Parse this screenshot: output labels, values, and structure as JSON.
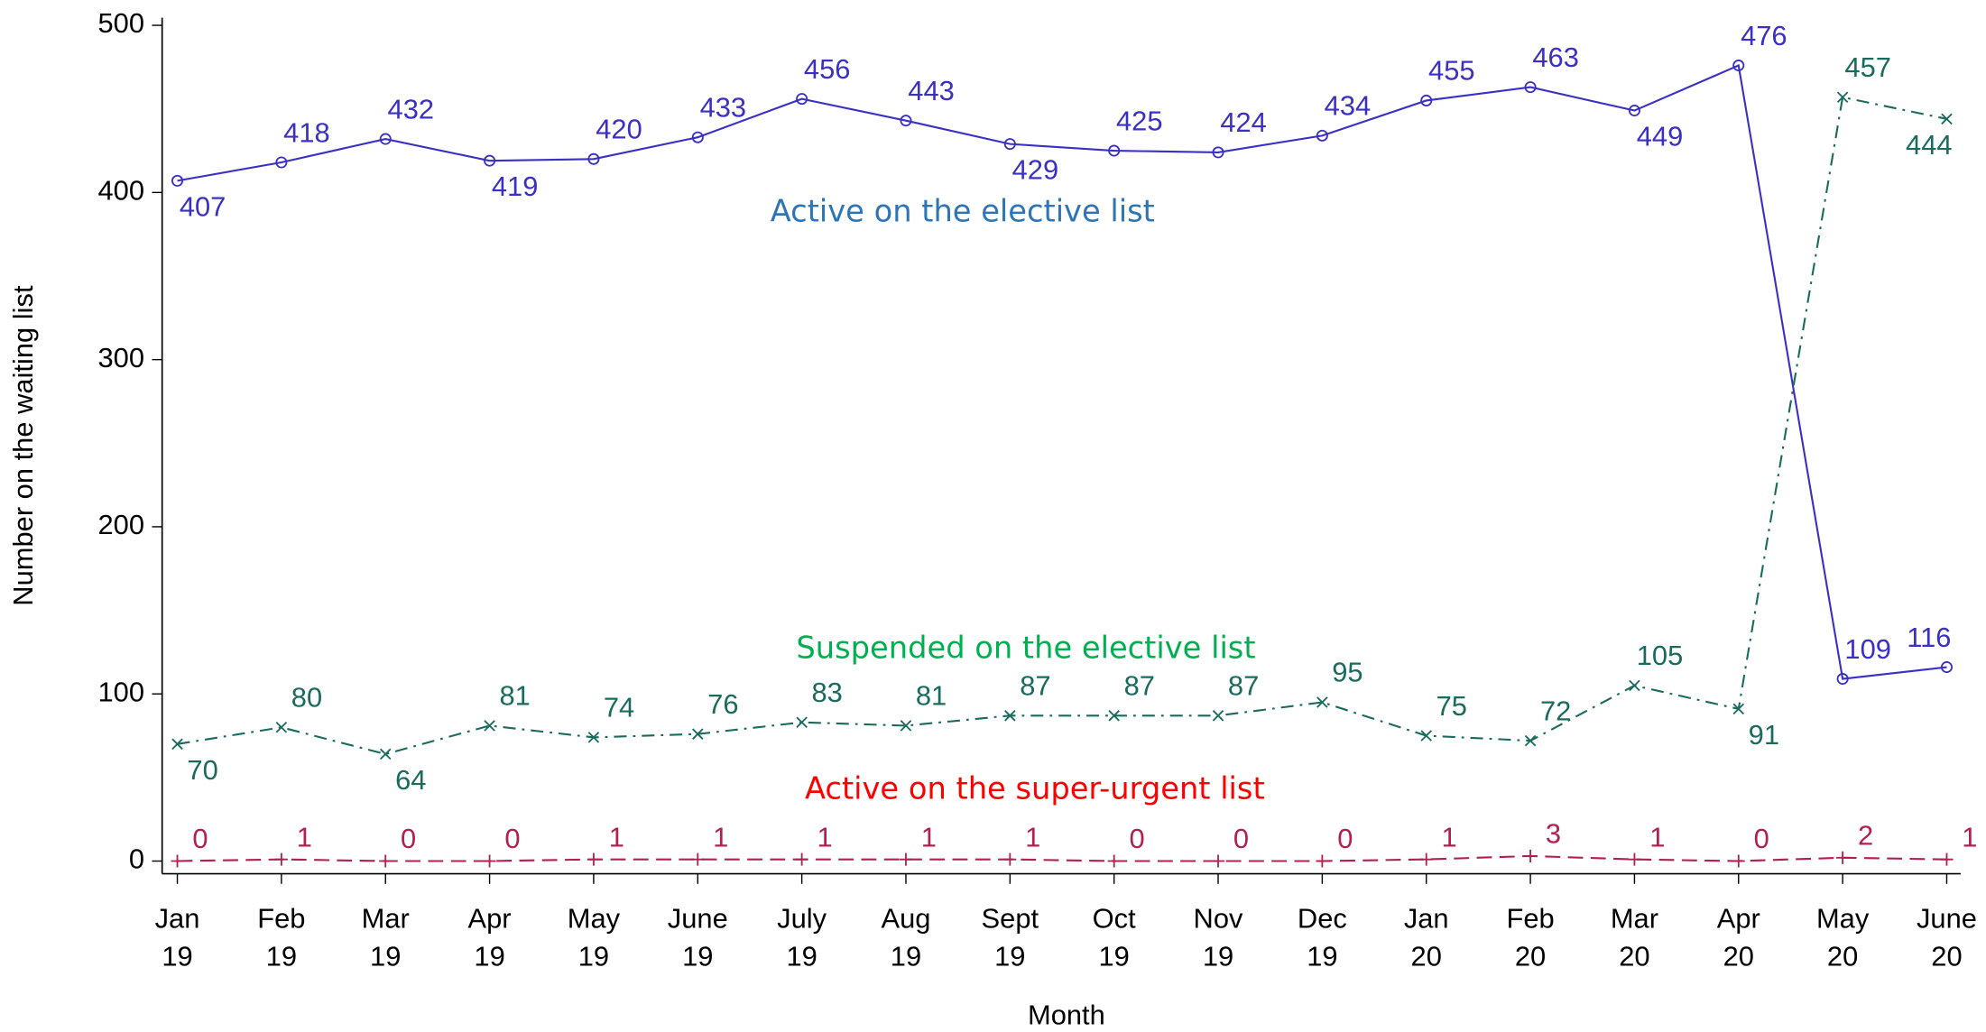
{
  "chart_data": {
    "type": "line",
    "x_label": "Month",
    "y_label": "Number on the waiting list",
    "categories": [
      [
        "Jan",
        "19"
      ],
      [
        "Feb",
        "19"
      ],
      [
        "Mar",
        "19"
      ],
      [
        "Apr",
        "19"
      ],
      [
        "May",
        "19"
      ],
      [
        "June",
        "19"
      ],
      [
        "July",
        "19"
      ],
      [
        "Aug",
        "19"
      ],
      [
        "Sept",
        "19"
      ],
      [
        "Oct",
        "19"
      ],
      [
        "Nov",
        "19"
      ],
      [
        "Dec",
        "19"
      ],
      [
        "Jan",
        "20"
      ],
      [
        "Feb",
        "20"
      ],
      [
        "Mar",
        "20"
      ],
      [
        "Apr",
        "20"
      ],
      [
        "May",
        "20"
      ],
      [
        "June",
        "20"
      ]
    ],
    "ylim": [
      0,
      500
    ],
    "yticks": [
      0,
      100,
      200,
      300,
      400,
      500
    ],
    "series": [
      {
        "name": "Active on the elective list",
        "color": "#3b30c4",
        "label_color": "#2e75b6",
        "marker": "circle",
        "dash": "none",
        "values": [
          407,
          418,
          432,
          419,
          420,
          433,
          456,
          443,
          429,
          425,
          424,
          434,
          455,
          463,
          449,
          476,
          109,
          116
        ]
      },
      {
        "name": "Suspended on the elective list",
        "color": "#1a6b5e",
        "label_color": "#00b050",
        "marker": "x",
        "dash": "10 5 2 5",
        "values": [
          70,
          80,
          64,
          81,
          74,
          76,
          83,
          81,
          87,
          87,
          87,
          95,
          75,
          72,
          105,
          91,
          457,
          444
        ]
      },
      {
        "name": "Active on the super-urgent list",
        "color": "#b02050",
        "label_color": "#ff0000",
        "marker": "plus",
        "dash": "12 6",
        "values": [
          0,
          1,
          0,
          0,
          1,
          1,
          1,
          1,
          1,
          0,
          0,
          0,
          1,
          3,
          1,
          0,
          2,
          1
        ]
      }
    ]
  }
}
